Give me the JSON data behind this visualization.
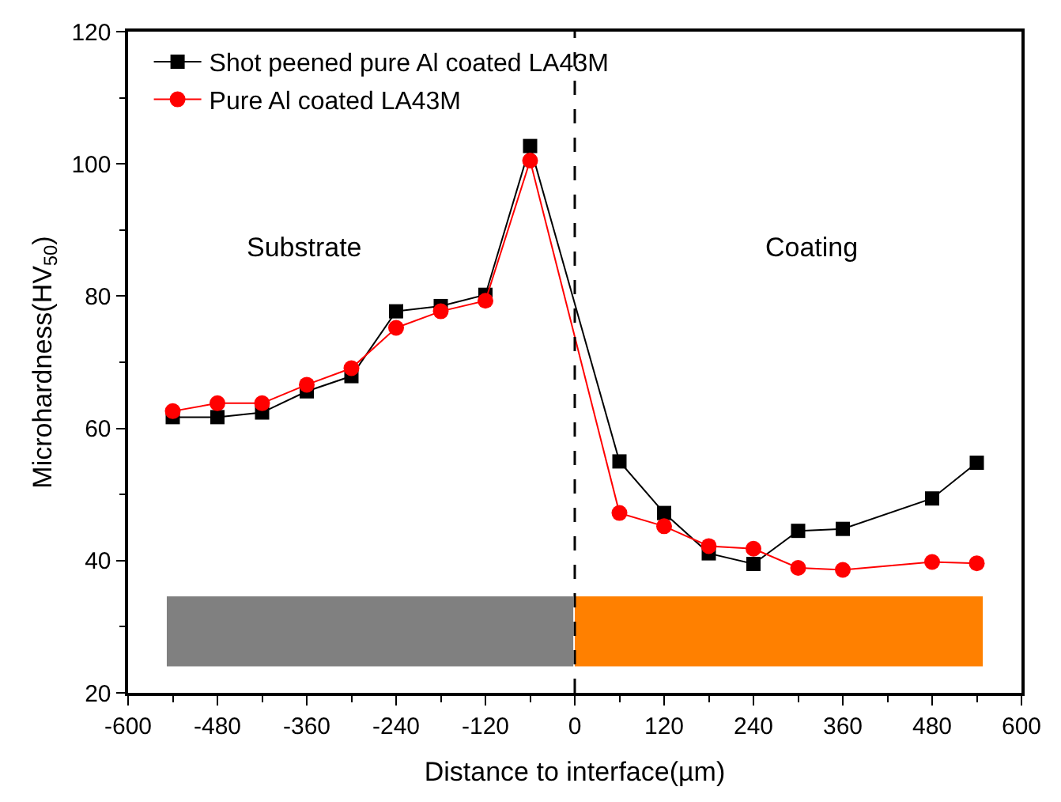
{
  "chart_data": {
    "type": "line",
    "xlabel": "Distance to interface(µm)",
    "ylabel": "Microhardness(HV$_{50}$)",
    "x": [
      -540,
      -480,
      -420,
      -360,
      -300,
      -240,
      -180,
      -120,
      -60,
      60,
      120,
      180,
      240,
      300,
      360,
      480,
      540
    ],
    "series": [
      {
        "name": "Shot peened pure Al coated LA43M",
        "color": "#000000",
        "marker": "square",
        "values": [
          61.7,
          61.7,
          62.4,
          65.6,
          67.9,
          77.7,
          78.5,
          80.2,
          102.7,
          55.0,
          47.2,
          41.1,
          39.5,
          44.5,
          44.8,
          49.4,
          54.8
        ]
      },
      {
        "name": "Pure Al coated LA43M",
        "color": "#ff0000",
        "marker": "circle",
        "values": [
          62.6,
          63.8,
          63.8,
          66.6,
          69.1,
          75.2,
          77.7,
          79.3,
          100.5,
          47.2,
          45.2,
          42.2,
          41.8,
          38.9,
          38.6,
          39.8,
          39.6
        ]
      }
    ],
    "xlim": [
      -600,
      600
    ],
    "xticks": [
      -600,
      -480,
      -360,
      -240,
      -120,
      0,
      120,
      240,
      360,
      480,
      600
    ],
    "ylim": [
      20,
      120
    ],
    "yticks": [
      20,
      40,
      60,
      80,
      100,
      120
    ],
    "ref_lines": [
      {
        "axis": "x",
        "value": 0,
        "color": "#000000",
        "line_style": "dashed"
      }
    ],
    "bands": [
      {
        "axis": "x",
        "from": -548,
        "to": -2,
        "color": "#808080"
      },
      {
        "axis": "x",
        "from": 0,
        "to": 548,
        "color": "#ff8000"
      }
    ],
    "annotations": [
      "Substrate",
      "Coating"
    ],
    "legend": "top left",
    "grid": false
  }
}
